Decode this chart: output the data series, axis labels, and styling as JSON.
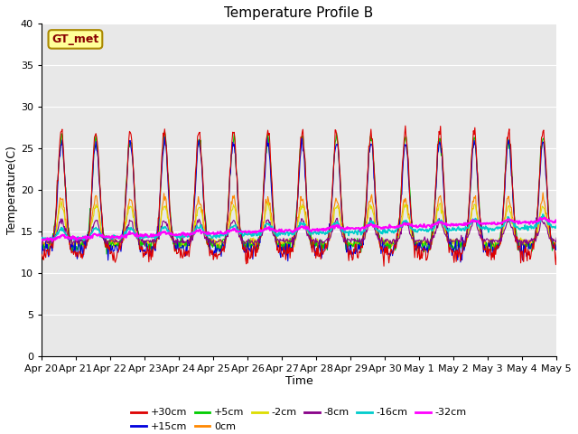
{
  "title": "Temperature Profile B",
  "xlabel": "Time",
  "ylabel": "Temperature(C)",
  "ylim": [
    0,
    40
  ],
  "xtick_labels": [
    "Apr 20",
    "Apr 21",
    "Apr 22",
    "Apr 23",
    "Apr 24",
    "Apr 25",
    "Apr 26",
    "Apr 27",
    "Apr 28",
    "Apr 29",
    "Apr 30",
    "May 1",
    "May 2",
    "May 3",
    "May 4",
    "May 5"
  ],
  "series_colors": {
    "+30cm": "#dd0000",
    "+15cm": "#0000dd",
    "+5cm": "#00cc00",
    "0cm": "#ff8800",
    "-2cm": "#dddd00",
    "-8cm": "#880088",
    "-16cm": "#00cccc",
    "-32cm": "#ff00ff"
  },
  "legend_label": "GT_met",
  "legend_bg": "#ffff99",
  "legend_border": "#aa8800",
  "legend_text_color": "#880000",
  "plot_bg": "#e8e8e8",
  "fig_bg": "#ffffff",
  "grid_color": "#ffffff",
  "n_days": 15,
  "ppd": 48,
  "base_night": 13.0,
  "figsize": [
    6.4,
    4.8
  ],
  "dpi": 100
}
